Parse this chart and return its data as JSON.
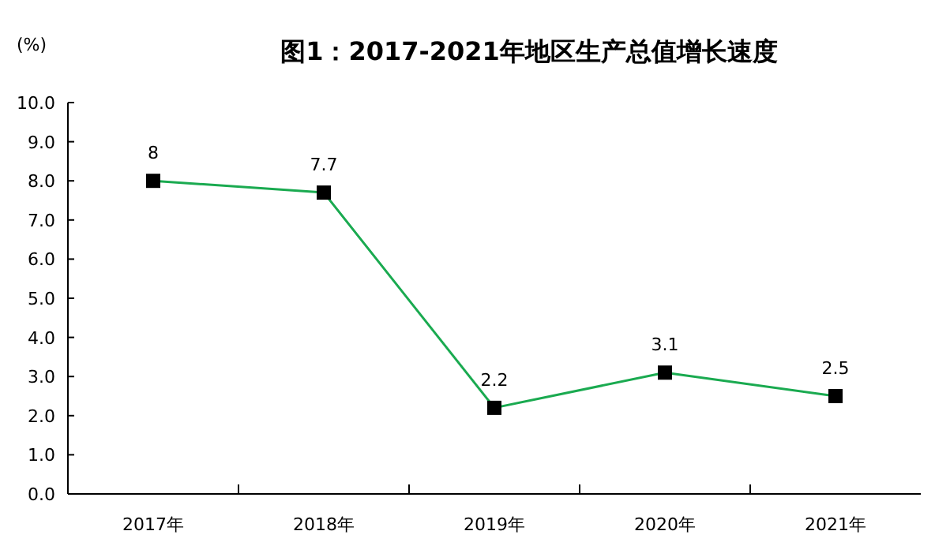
{
  "chart_data": {
    "type": "line",
    "title": "图1：2017-2021年地区生产总值增长速度",
    "ylabel": "(%)",
    "categories": [
      "2017年",
      "2018年",
      "2019年",
      "2020年",
      "2021年"
    ],
    "series": [
      {
        "color": "#1aaa50",
        "values": [
          8,
          7.7,
          2.2,
          3.1,
          2.5
        ]
      }
    ],
    "ylim": [
      0,
      10
    ],
    "yticks": [
      {
        "value": 0,
        "label": "0.0"
      },
      {
        "value": 1,
        "label": "1.0"
      },
      {
        "value": 2,
        "label": "2.0"
      },
      {
        "value": 3,
        "label": "3.0"
      },
      {
        "value": 4,
        "label": "4.0"
      },
      {
        "value": 5,
        "label": "5.0"
      },
      {
        "value": 6,
        "label": "6.0"
      },
      {
        "value": 7,
        "label": "7.0"
      },
      {
        "value": 8,
        "label": "8.0"
      },
      {
        "value": 9,
        "label": "9.0"
      },
      {
        "value": 10,
        "label": "10.0"
      }
    ],
    "marker": "square",
    "data_labels": true,
    "grid": false
  }
}
